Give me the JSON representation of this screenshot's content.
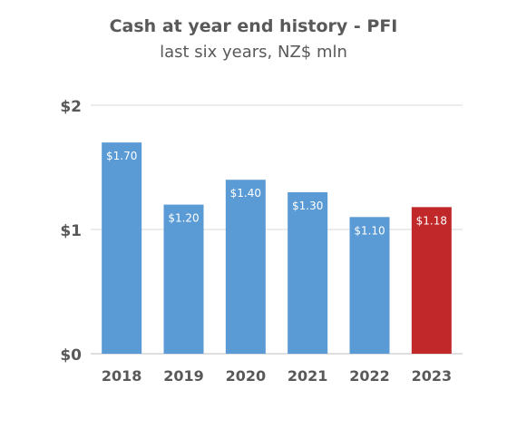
{
  "chart_data": {
    "type": "bar",
    "title": "Cash at year end history - PFI",
    "subtitle": "last six years, NZ$ mln",
    "categories": [
      "2018",
      "2019",
      "2020",
      "2021",
      "2022",
      "2023"
    ],
    "values": [
      1.7,
      1.2,
      1.4,
      1.3,
      1.1,
      1.18
    ],
    "data_labels": [
      "$1.70",
      "$1.20",
      "$1.40",
      "$1.30",
      "$1.10",
      "$1.18"
    ],
    "ylim": [
      0,
      2
    ],
    "yticks": [
      0,
      1,
      2
    ],
    "ytick_labels": [
      "$0",
      "$1",
      "$2"
    ],
    "xlabel": "",
    "ylabel": "",
    "grid": true,
    "bar_color": "#5B9BD5",
    "highlight_color": "#C0282A",
    "highlight_index": 5
  }
}
